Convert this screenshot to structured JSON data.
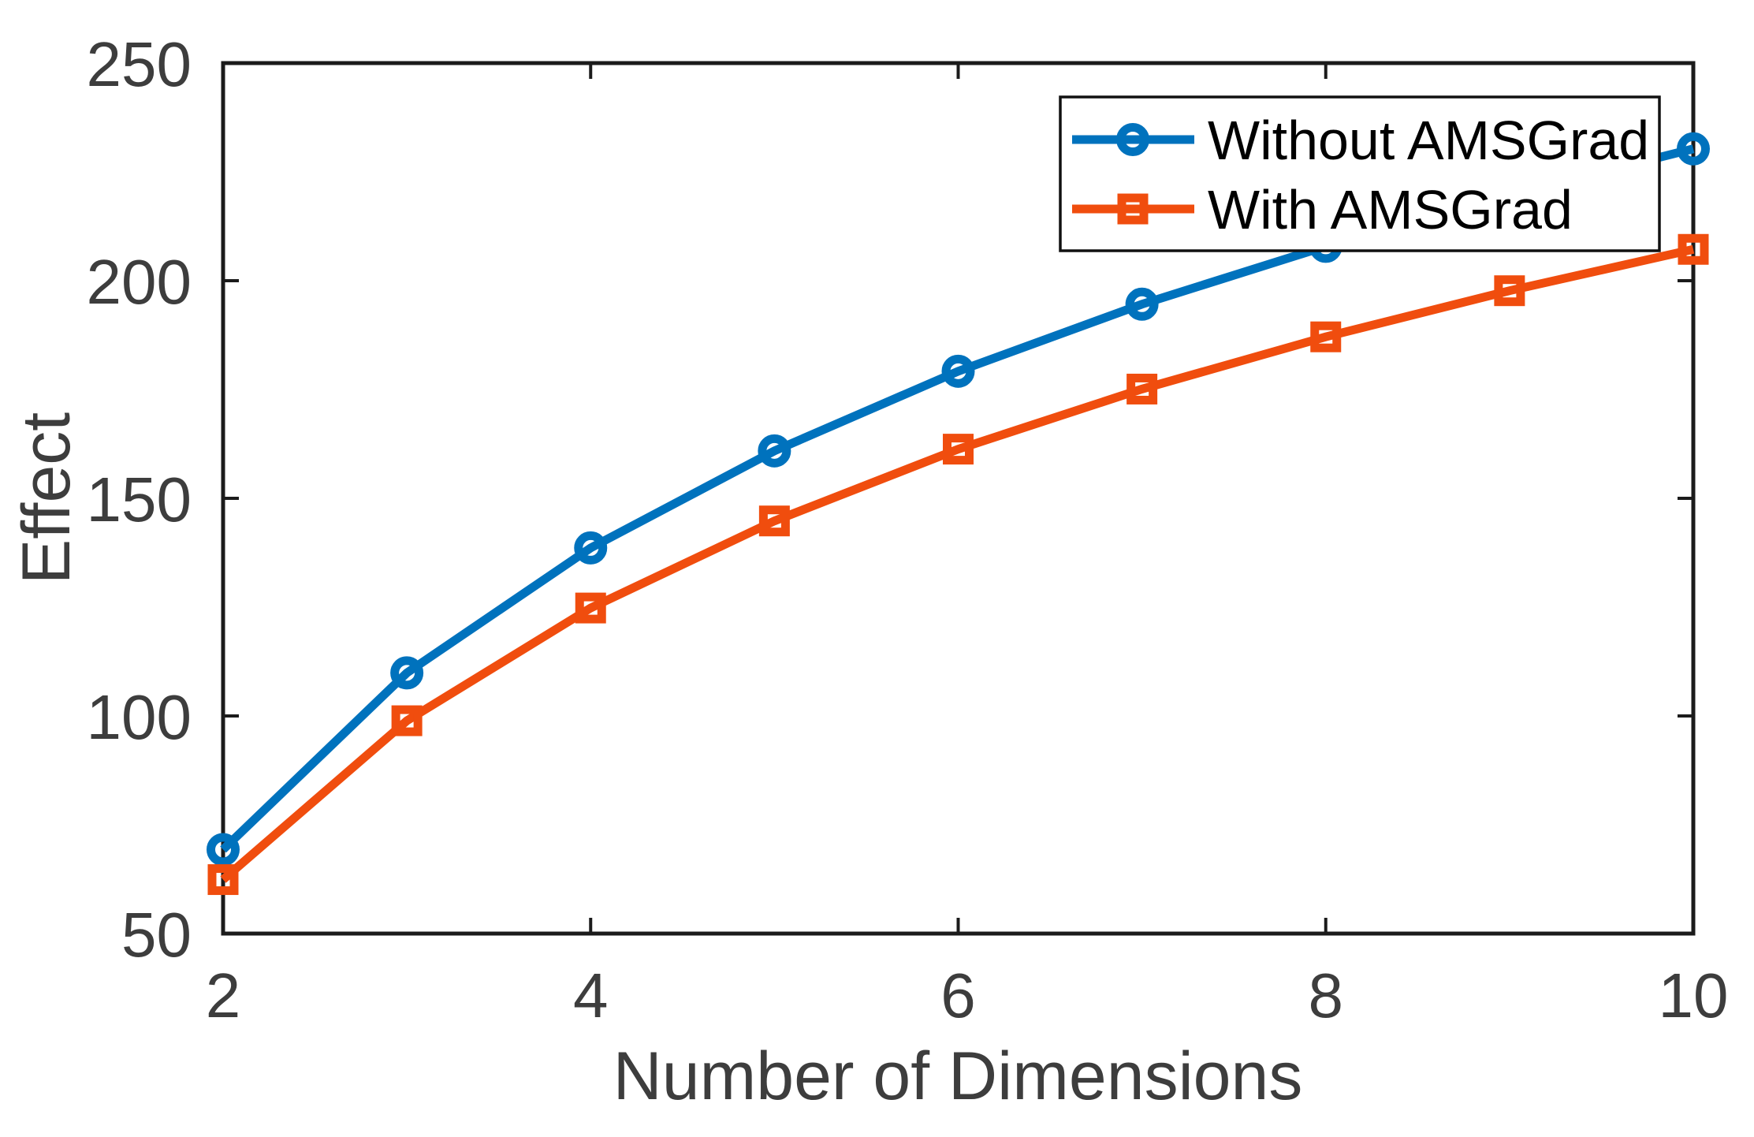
{
  "chart_data": {
    "type": "line",
    "title": "",
    "xlabel": "Number of Dimensions",
    "ylabel": "Effect",
    "x": [
      2,
      3,
      4,
      5,
      6,
      7,
      8,
      9,
      10
    ],
    "series": [
      {
        "name": "Without AMSGrad",
        "color": "#0072BD",
        "marker": "circle",
        "values": [
          69.3,
          109.9,
          138.6,
          160.9,
          179.2,
          194.6,
          207.9,
          219.7,
          230.3
        ]
      },
      {
        "name": "With AMSGrad",
        "color": "#F04D0E",
        "marker": "square",
        "values": [
          62.4,
          98.9,
          124.8,
          144.8,
          161.3,
          175.1,
          187.1,
          197.7,
          207.2
        ]
      }
    ],
    "xlim": [
      2,
      10
    ],
    "ylim": [
      50,
      250
    ],
    "xticks": [
      2,
      4,
      6,
      8,
      10
    ],
    "yticks": [
      50,
      100,
      150,
      200,
      250
    ],
    "xtick_labels": [
      "2",
      "4",
      "6",
      "8",
      "10"
    ],
    "ytick_labels": [
      "50",
      "100",
      "150",
      "200",
      "250"
    ],
    "grid": false,
    "legend_position": "top-right"
  },
  "styles": {
    "background": "#ffffff",
    "axis_color": "#1b1b1b",
    "tick_label_color": "#3d3d3d",
    "axis_label_color": "#3d3d3d",
    "legend_text_color": "#000000",
    "legend_border_color": "#111111",
    "legend_background": "#ffffff",
    "series_blue": "#0072BD",
    "series_orange": "#F04D0E"
  }
}
